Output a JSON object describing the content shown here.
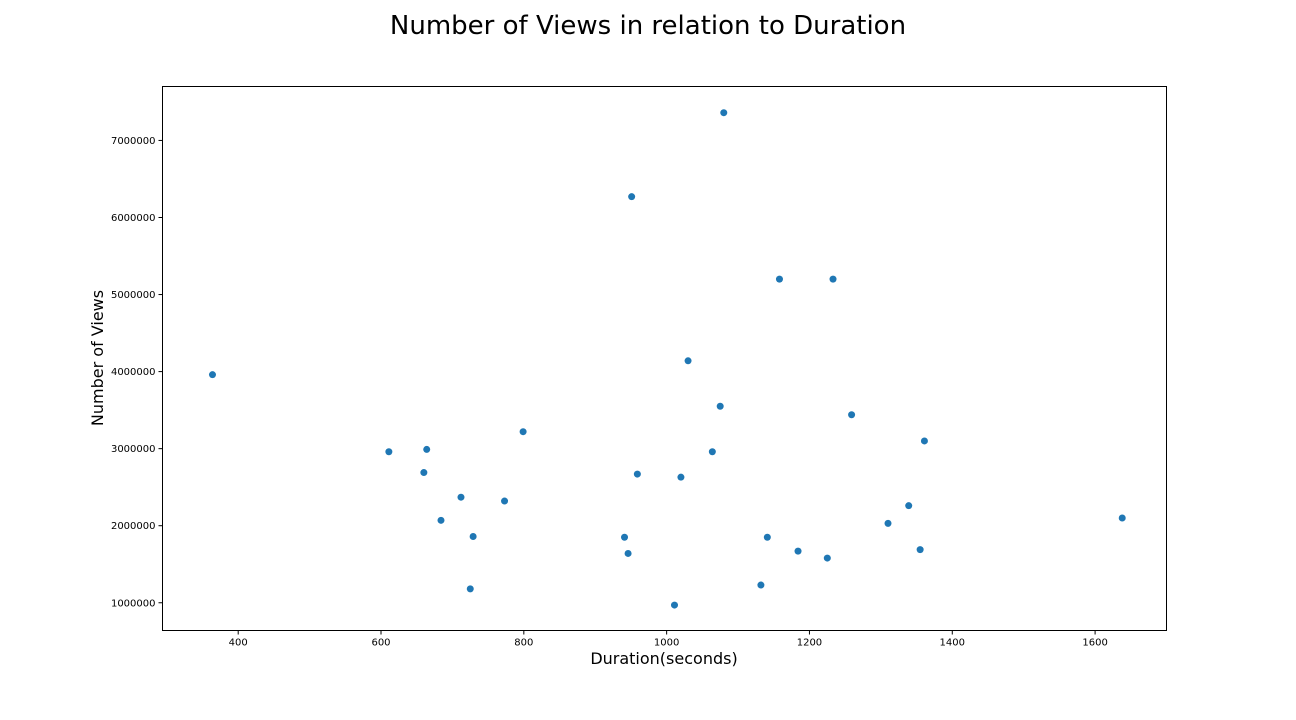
{
  "chart_data": {
    "type": "scatter",
    "title": "Number of Views in relation to Duration",
    "xlabel": "Duration(seconds)",
    "ylabel": "Number of Views",
    "xlim": [
      294,
      1700
    ],
    "ylim": [
      640000,
      7700000
    ],
    "xticks": [
      400,
      600,
      800,
      1000,
      1200,
      1400,
      1600
    ],
    "yticks": [
      1000000,
      2000000,
      3000000,
      4000000,
      5000000,
      6000000,
      7000000
    ],
    "xtick_labels": [
      "400",
      "600",
      "800",
      "1000",
      "1200",
      "1400",
      "1600"
    ],
    "ytick_labels": [
      "1000000",
      "2000000",
      "3000000",
      "4000000",
      "5000000",
      "6000000",
      "7000000"
    ],
    "grid": false,
    "legend": "none",
    "marker_color": "#1f77b4",
    "points": [
      {
        "x": 364,
        "y": 3960000
      },
      {
        "x": 611,
        "y": 2960000
      },
      {
        "x": 660,
        "y": 2690000
      },
      {
        "x": 664,
        "y": 2990000
      },
      {
        "x": 684,
        "y": 2070000
      },
      {
        "x": 712,
        "y": 2370000
      },
      {
        "x": 725,
        "y": 1180000
      },
      {
        "x": 729,
        "y": 1860000
      },
      {
        "x": 773,
        "y": 2320000
      },
      {
        "x": 799,
        "y": 3220000
      },
      {
        "x": 941,
        "y": 1850000
      },
      {
        "x": 946,
        "y": 1640000
      },
      {
        "x": 951,
        "y": 6270000
      },
      {
        "x": 959,
        "y": 2670000
      },
      {
        "x": 1011,
        "y": 970000
      },
      {
        "x": 1020,
        "y": 2630000
      },
      {
        "x": 1030,
        "y": 4140000
      },
      {
        "x": 1064,
        "y": 2960000
      },
      {
        "x": 1075,
        "y": 3550000
      },
      {
        "x": 1080,
        "y": 7360000
      },
      {
        "x": 1132,
        "y": 1230000
      },
      {
        "x": 1141,
        "y": 1850000
      },
      {
        "x": 1158,
        "y": 5200000
      },
      {
        "x": 1184,
        "y": 1670000
      },
      {
        "x": 1225,
        "y": 1580000
      },
      {
        "x": 1233,
        "y": 5200000
      },
      {
        "x": 1259,
        "y": 3440000
      },
      {
        "x": 1310,
        "y": 2030000
      },
      {
        "x": 1339,
        "y": 2260000
      },
      {
        "x": 1355,
        "y": 1690000
      },
      {
        "x": 1361,
        "y": 3100000
      },
      {
        "x": 1638,
        "y": 2100000
      }
    ]
  }
}
